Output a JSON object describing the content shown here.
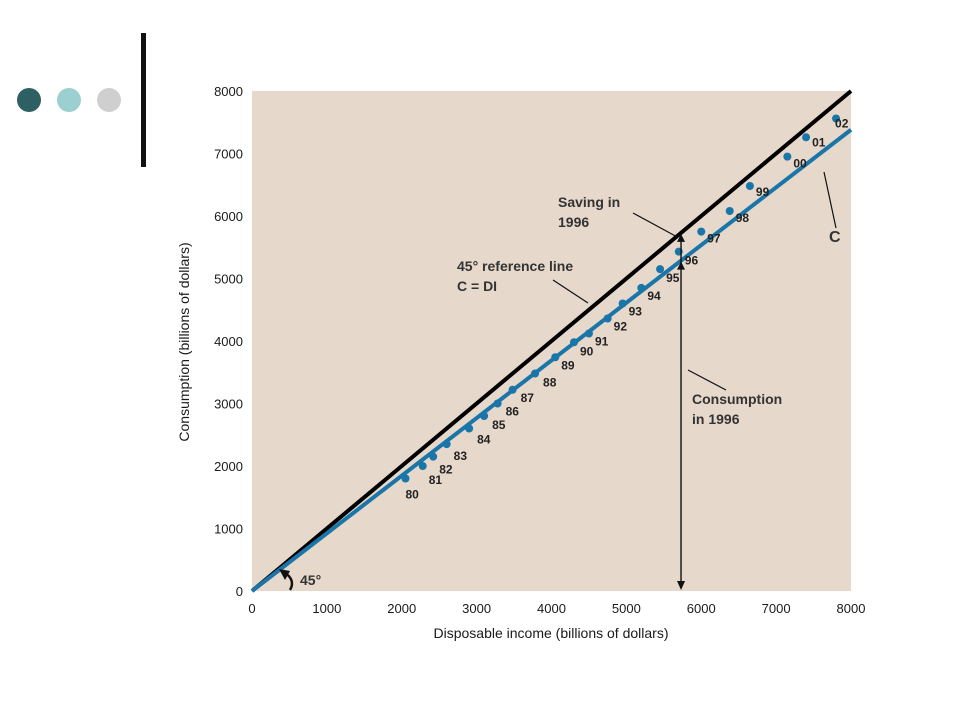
{
  "decor": {
    "dots": [
      "#2e5f63",
      "#9ccfd0",
      "#cfcfcf"
    ]
  },
  "colors": {
    "plot_bg": "#e6d8cb",
    "consumption": "#1a75a8",
    "reference": "#000000",
    "points": "#1a75a8"
  },
  "chart_data": {
    "type": "scatter",
    "xlabel": "Disposable income (billions of dollars)",
    "ylabel": "Consumption (billions of dollars)",
    "xlim": [
      0,
      8000
    ],
    "ylim": [
      0,
      8000
    ],
    "x_ticks": [
      "0",
      "1000",
      "2000",
      "3000",
      "4000",
      "5000",
      "6000",
      "7000",
      "8000"
    ],
    "y_ticks": [
      "0",
      "1000",
      "2000",
      "3000",
      "4000",
      "5000",
      "6000",
      "7000",
      "8000"
    ],
    "grid": false,
    "series": [
      {
        "labels": [
          "80",
          "81",
          "82",
          "83",
          "84",
          "85",
          "86",
          "87",
          "88",
          "89",
          "90",
          "91",
          "92",
          "93",
          "94",
          "95",
          "96",
          "97",
          "98",
          "99",
          "00",
          "01",
          "02"
        ],
        "x": [
          2050,
          2280,
          2420,
          2600,
          2900,
          3100,
          3280,
          3480,
          3780,
          4050,
          4300,
          4500,
          4750,
          4950,
          5200,
          5450,
          5700,
          6000,
          6380,
          6650,
          7150,
          7400,
          7800
        ],
        "y": [
          1800,
          2000,
          2150,
          2350,
          2600,
          2800,
          3000,
          3220,
          3480,
          3740,
          3980,
          4120,
          4360,
          4600,
          4850,
          5150,
          5430,
          5750,
          6080,
          6480,
          6950,
          7260,
          7560
        ]
      }
    ],
    "lines": [
      {
        "name": "45° reference line",
        "x": [
          0,
          8000
        ],
        "y": [
          0,
          8000
        ]
      },
      {
        "name": "C",
        "x": [
          0,
          8000
        ],
        "y": [
          0,
          7380
        ]
      }
    ],
    "annotations": {
      "reference_line": [
        "45° reference line",
        "C = DI"
      ],
      "saving": [
        "Saving in",
        "1996"
      ],
      "consumption": [
        "Consumption",
        "in 1996"
      ],
      "curve_label": "C",
      "angle": "45°",
      "highlight_x": 5730
    }
  }
}
